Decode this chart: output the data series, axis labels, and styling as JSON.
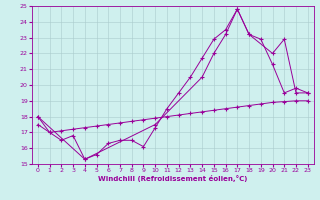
{
  "xlabel": "Windchill (Refroidissement éolien,°C)",
  "background_color": "#cff0ee",
  "line_color": "#990099",
  "grid_color": "#aacccc",
  "xlim": [
    -0.5,
    23.5
  ],
  "ylim": [
    15,
    25
  ],
  "xticks": [
    0,
    1,
    2,
    3,
    4,
    5,
    6,
    7,
    8,
    9,
    10,
    11,
    12,
    13,
    14,
    15,
    16,
    17,
    18,
    19,
    20,
    21,
    22,
    23
  ],
  "yticks": [
    15,
    16,
    17,
    18,
    19,
    20,
    21,
    22,
    23,
    24,
    25
  ],
  "series1_x": [
    0,
    1,
    2,
    3,
    4,
    5,
    6,
    7,
    8,
    9,
    10,
    11,
    12,
    13,
    14,
    15,
    16,
    17,
    18,
    19,
    20,
    21,
    22,
    23
  ],
  "series1_y": [
    18.0,
    17.0,
    16.5,
    16.8,
    15.3,
    15.6,
    16.3,
    16.5,
    16.5,
    16.1,
    17.3,
    18.5,
    19.5,
    20.5,
    21.7,
    22.9,
    23.5,
    24.8,
    23.2,
    22.9,
    21.3,
    19.5,
    19.8,
    19.5
  ],
  "series2_x": [
    0,
    4,
    10,
    14,
    15,
    16,
    17,
    18,
    20,
    21,
    22,
    23
  ],
  "series2_y": [
    18.0,
    15.3,
    17.5,
    20.5,
    22.0,
    23.2,
    24.8,
    23.2,
    22.0,
    22.9,
    19.5,
    19.5
  ],
  "series3_x": [
    0,
    1,
    2,
    3,
    4,
    5,
    6,
    7,
    8,
    9,
    10,
    11,
    12,
    13,
    14,
    15,
    16,
    17,
    18,
    19,
    20,
    21,
    22,
    23
  ],
  "series3_y": [
    17.5,
    17.0,
    17.1,
    17.2,
    17.3,
    17.4,
    17.5,
    17.6,
    17.7,
    17.8,
    17.9,
    18.0,
    18.1,
    18.2,
    18.3,
    18.4,
    18.5,
    18.6,
    18.7,
    18.8,
    18.9,
    18.95,
    19.0,
    19.0
  ]
}
